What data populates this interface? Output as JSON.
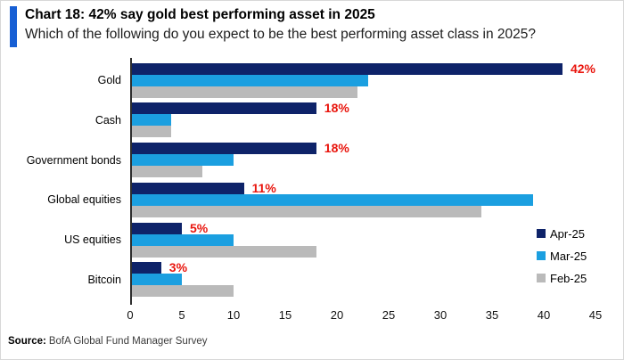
{
  "header": {
    "title": "Chart 18: 42% say gold best performing asset in 2025",
    "subtitle": "Which of the following do you expect to be the best performing asset class in 2025?",
    "accent_color": "#175fd4"
  },
  "chart_data": {
    "type": "bar",
    "orientation": "horizontal",
    "title": "Chart 18: 42% say gold best performing asset in 2025",
    "question": "Which of the following do you expect to be the best performing asset class in 2025?",
    "categories": [
      "Gold",
      "Cash",
      "Government bonds",
      "Global equities",
      "US equities",
      "Bitcoin"
    ],
    "series": [
      {
        "name": "Apr-25",
        "color": "#0e2369",
        "values": [
          42,
          18,
          18,
          11,
          5,
          3
        ],
        "data_labels": [
          "42%",
          "18%",
          "18%",
          "11%",
          "5%",
          "3%"
        ]
      },
      {
        "name": "Mar-25",
        "color": "#1b9fe0",
        "values": [
          23,
          4,
          10,
          39,
          10,
          5
        ]
      },
      {
        "name": "Feb-25",
        "color": "#bababa",
        "values": [
          22,
          4,
          7,
          34,
          18,
          10
        ]
      }
    ],
    "xlim": [
      0,
      45
    ],
    "x_ticks": [
      0,
      5,
      10,
      15,
      20,
      25,
      30,
      35,
      40,
      45
    ],
    "data_label_color": "#e9150d",
    "legend_position": "right",
    "grid": false
  },
  "footer": {
    "source_label": "Source:",
    "source_text": "BofA Global Fund Manager Survey"
  }
}
